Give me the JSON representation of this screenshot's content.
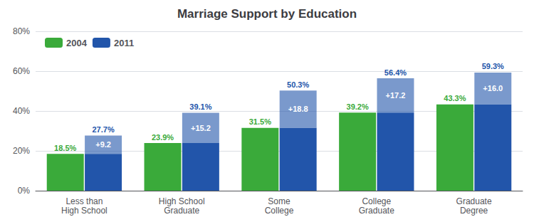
{
  "chart_data": {
    "type": "bar",
    "title": "Marriage Support by Education",
    "categories": [
      "Less than\nHigh School",
      "High School\nGraduate",
      "Some\nCollege",
      "College\nGraduate",
      "Graduate\nDegree"
    ],
    "series": [
      {
        "name": "2004",
        "color": "#3aaa3a",
        "values": [
          18.5,
          23.9,
          31.5,
          39.2,
          43.3
        ],
        "value_labels": [
          "18.5%",
          "23.9%",
          "31.5%",
          "39.2%",
          "43.3%"
        ]
      },
      {
        "name": "2011",
        "color": "#2255aa",
        "values": [
          27.7,
          39.1,
          50.3,
          56.4,
          59.3
        ],
        "value_labels": [
          "27.7%",
          "39.1%",
          "50.3%",
          "56.4%",
          "59.3%"
        ]
      }
    ],
    "annotations": [
      "+9.2",
      "+15.2",
      "+18.8",
      "+17.2",
      "+16.0"
    ],
    "ylim": [
      0,
      80
    ],
    "yticks": [
      {
        "value": 0,
        "label": "0%"
      },
      {
        "value": 20,
        "label": "20%"
      },
      {
        "value": 40,
        "label": "40%"
      },
      {
        "value": 60,
        "label": "60%"
      },
      {
        "value": 80,
        "label": "80%"
      }
    ],
    "grid": true,
    "legend": "upper left",
    "data_labels": true
  }
}
